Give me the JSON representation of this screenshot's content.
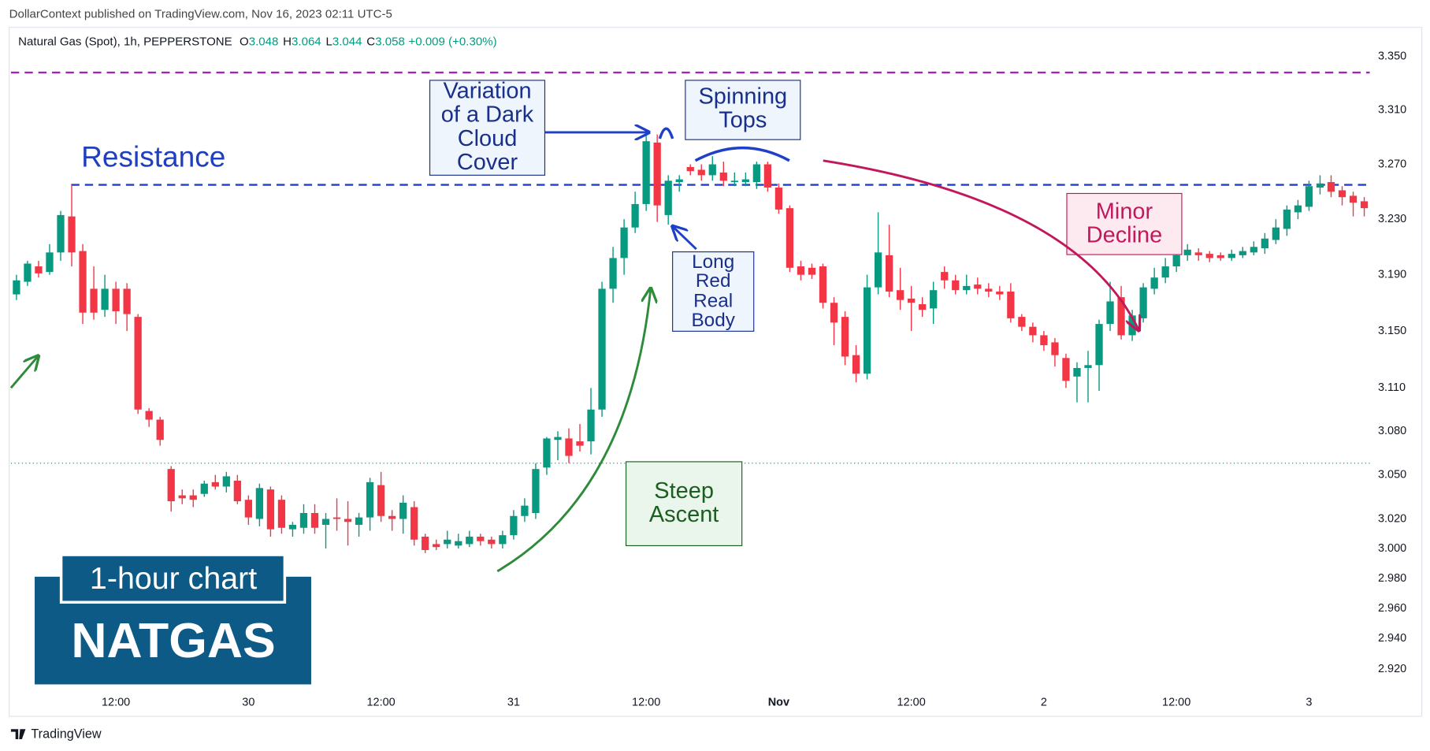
{
  "header": {
    "text": "DollarContext published on TradingView.com, Nov 16, 2023 02:11 UTC-5",
    "brand": "TradingView"
  },
  "badge": {
    "subtitle": "1-hour chart",
    "title": "NATGAS"
  },
  "chart_data": {
    "type": "candlestick",
    "title": "Natural Gas (Spot), 1h, PEPPERSTONE",
    "ohlc_legend": [
      {
        "label": "O",
        "value": 3.048
      },
      {
        "label": "H",
        "value": 3.064
      },
      {
        "label": "L",
        "value": 3.044
      },
      {
        "label": "C",
        "value": 3.058
      }
    ],
    "change": "+0.009 (+0.30%)",
    "legend_color": "#089981",
    "up_color": "#089981",
    "down_color": "#f23645",
    "log": true,
    "grid": false,
    "ylim": [
      2.907,
      3.372
    ],
    "yticks": [
      {
        "value": 3.35,
        "label": "3.350"
      },
      {
        "value": 3.31,
        "label": "3.310"
      },
      {
        "value": 3.27,
        "label": "3.270"
      },
      {
        "value": 3.23,
        "label": "3.230"
      },
      {
        "value": 3.19,
        "label": "3.190"
      },
      {
        "value": 3.15,
        "label": "3.150"
      },
      {
        "value": 3.11,
        "label": "3.110"
      },
      {
        "value": 3.08,
        "label": "3.080"
      },
      {
        "value": 3.05,
        "label": "3.050"
      },
      {
        "value": 3.02,
        "label": "3.020"
      },
      {
        "value": 3,
        "label": "3.000"
      },
      {
        "value": 2.98,
        "label": "2.980"
      },
      {
        "value": 2.96,
        "label": "2.960"
      },
      {
        "value": 2.94,
        "label": "2.940"
      },
      {
        "value": 2.92,
        "label": "2.920"
      }
    ],
    "categories": [
      null,
      null,
      null,
      null,
      null,
      null,
      null,
      null,
      null,
      "12:00",
      null,
      null,
      null,
      null,
      null,
      null,
      null,
      null,
      null,
      null,
      null,
      "30",
      null,
      null,
      null,
      null,
      null,
      null,
      null,
      null,
      null,
      null,
      null,
      "12:00",
      null,
      null,
      null,
      null,
      null,
      null,
      null,
      null,
      null,
      null,
      null,
      "31",
      null,
      null,
      null,
      null,
      null,
      null,
      null,
      null,
      null,
      null,
      null,
      "12:00",
      null,
      null,
      null,
      null,
      null,
      null,
      null,
      null,
      null,
      null,
      null,
      "Nov",
      null,
      null,
      null,
      null,
      null,
      null,
      null,
      null,
      null,
      null,
      null,
      "12:00",
      null,
      null,
      null,
      null,
      null,
      null,
      null,
      null,
      null,
      null,
      null,
      "2",
      null,
      null,
      null,
      null,
      null,
      null,
      null,
      null,
      null,
      null,
      null,
      "12:00",
      null,
      null,
      null,
      null,
      null,
      null,
      null,
      null,
      null,
      null,
      null,
      "3",
      null,
      null,
      null,
      null,
      null
    ],
    "open": [
      3.176,
      3.185,
      3.196,
      3.192,
      3.206,
      3.232,
      3.207,
      3.18,
      3.165,
      3.18,
      3.18,
      3.16,
      3.094,
      3.088,
      3.054,
      3.036,
      3.036,
      3.037,
      3.045,
      3.042,
      3.046,
      3.033,
      3.02,
      3.04,
      3.033,
      3.013,
      3.014,
      3.024,
      3.016,
      3.021,
      3.02,
      3.016,
      3.021,
      3.043,
      3.022,
      3.02,
      3.028,
      3.008,
      3.003,
      3.003,
      3.002,
      3.003,
      3.008,
      3.006,
      3.003,
      3.009,
      3.022,
      3.024,
      3.055,
      3.074,
      3.075,
      3.073,
      3.073,
      3.095,
      3.18,
      3.202,
      3.224,
      3.241,
      3.286,
      3.233,
      3.257,
      3.268,
      3.266,
      3.262,
      3.264,
      3.257,
      3.257,
      3.257,
      3.27,
      3.253,
      3.238,
      3.196,
      3.195,
      3.196,
      3.17,
      3.16,
      3.133,
      3.12,
      3.181,
      3.204,
      3.179,
      3.173,
      3.169,
      3.166,
      3.192,
      3.186,
      3.179,
      3.183,
      3.18,
      3.178,
      3.178,
      3.16,
      3.153,
      3.147,
      3.142,
      3.131,
      3.118,
      3.124,
      3.126,
      3.155,
      3.174,
      3.147,
      3.159,
      3.18,
      3.188,
      3.196,
      3.204,
      3.206,
      3.205,
      3.204,
      3.202,
      3.204,
      3.206,
      3.209,
      3.215,
      3.223,
      3.235,
      3.239,
      3.253,
      3.257,
      3.251,
      3.247,
      3.243
    ],
    "high": [
      3.19,
      3.2,
      3.2,
      3.212,
      3.236,
      3.255,
      3.212,
      3.196,
      3.19,
      3.185,
      3.184,
      3.162,
      3.096,
      3.09,
      3.056,
      3.04,
      3.04,
      3.046,
      3.05,
      3.052,
      3.05,
      3.036,
      3.044,
      3.042,
      3.036,
      3.018,
      3.03,
      3.03,
      3.024,
      3.034,
      3.032,
      3.024,
      3.048,
      3.052,
      3.026,
      3.036,
      3.032,
      3.01,
      3.006,
      3.012,
      3.01,
      3.012,
      3.01,
      3.008,
      3.012,
      3.026,
      3.034,
      3.058,
      3.076,
      3.08,
      3.082,
      3.085,
      3.11,
      3.185,
      3.21,
      3.23,
      3.25,
      3.292,
      3.292,
      3.262,
      3.262,
      3.27,
      3.27,
      3.276,
      3.272,
      3.264,
      3.264,
      3.272,
      3.272,
      3.256,
      3.24,
      3.2,
      3.198,
      3.198,
      3.174,
      3.164,
      3.14,
      3.19,
      3.235,
      3.226,
      3.195,
      3.182,
      3.174,
      3.185,
      3.196,
      3.19,
      3.19,
      3.188,
      3.184,
      3.182,
      3.184,
      3.162,
      3.156,
      3.15,
      3.145,
      3.134,
      3.128,
      3.136,
      3.158,
      3.185,
      3.182,
      3.165,
      3.184,
      3.195,
      3.202,
      3.208,
      3.212,
      3.209,
      3.207,
      3.206,
      3.208,
      3.21,
      3.214,
      3.22,
      3.23,
      3.24,
      3.244,
      3.258,
      3.262,
      3.262,
      3.254,
      3.25,
      3.246
    ],
    "low": [
      3.172,
      3.182,
      3.188,
      3.19,
      3.2,
      3.196,
      3.155,
      3.158,
      3.16,
      3.155,
      3.15,
      3.092,
      3.083,
      3.07,
      3.025,
      3.03,
      3.028,
      3.035,
      3.04,
      3.038,
      3.03,
      3.016,
      3.015,
      3.008,
      3.01,
      3.008,
      3.01,
      3.01,
      3.0,
      3.012,
      3.002,
      3.008,
      3.012,
      3.018,
      3.012,
      3.01,
      3.002,
      2.997,
      2.999,
      3.0,
      3.0,
      3.001,
      3.002,
      3.0,
      3.0,
      3.006,
      3.018,
      3.02,
      3.05,
      3.06,
      3.058,
      3.066,
      3.064,
      3.09,
      3.17,
      3.19,
      3.22,
      3.236,
      3.228,
      3.226,
      3.25,
      3.262,
      3.258,
      3.258,
      3.254,
      3.254,
      3.254,
      3.252,
      3.25,
      3.234,
      3.192,
      3.186,
      3.187,
      3.166,
      3.14,
      3.126,
      3.114,
      3.116,
      3.176,
      3.174,
      3.165,
      3.15,
      3.16,
      3.155,
      3.18,
      3.176,
      3.176,
      3.176,
      3.174,
      3.172,
      3.156,
      3.15,
      3.142,
      3.136,
      3.125,
      3.11,
      3.1,
      3.1,
      3.108,
      3.15,
      3.144,
      3.143,
      3.156,
      3.176,
      3.184,
      3.192,
      3.2,
      3.2,
      3.199,
      3.2,
      3.2,
      3.202,
      3.204,
      3.205,
      3.212,
      3.218,
      3.23,
      3.236,
      3.248,
      3.246,
      3.24,
      3.232,
      3.232
    ],
    "close": [
      3.186,
      3.198,
      3.191,
      3.206,
      3.233,
      3.206,
      3.163,
      3.163,
      3.18,
      3.164,
      3.162,
      3.095,
      3.088,
      3.074,
      3.032,
      3.034,
      3.033,
      3.044,
      3.042,
      3.049,
      3.032,
      3.021,
      3.041,
      3.013,
      3.014,
      3.016,
      3.024,
      3.014,
      3.02,
      3.02,
      3.018,
      3.021,
      3.045,
      3.022,
      3.02,
      3.031,
      3.006,
      2.999,
      3.001,
      3.006,
      3.005,
      3.008,
      3.005,
      3.003,
      3.009,
      3.022,
      3.029,
      3.054,
      3.075,
      3.076,
      3.063,
      3.07,
      3.095,
      3.18,
      3.202,
      3.224,
      3.241,
      3.287,
      3.24,
      3.258,
      3.259,
      3.265,
      3.262,
      3.27,
      3.258,
      3.258,
      3.259,
      3.27,
      3.253,
      3.237,
      3.195,
      3.19,
      3.19,
      3.17,
      3.156,
      3.132,
      3.12,
      3.181,
      3.206,
      3.178,
      3.172,
      3.17,
      3.165,
      3.179,
      3.186,
      3.179,
      3.182,
      3.18,
      3.178,
      3.176,
      3.159,
      3.153,
      3.147,
      3.14,
      3.133,
      3.115,
      3.124,
      3.126,
      3.155,
      3.171,
      3.147,
      3.161,
      3.181,
      3.188,
      3.196,
      3.204,
      3.208,
      3.204,
      3.202,
      3.202,
      3.205,
      3.207,
      3.21,
      3.216,
      3.224,
      3.237,
      3.24,
      3.254,
      3.256,
      3.25,
      3.246,
      3.242,
      3.238
    ],
    "hlines": [
      {
        "value": 3.338,
        "color": "#9c27b0",
        "style": "dashed"
      },
      {
        "value": 3.255,
        "color": "#1e40c8",
        "style": "dashed"
      },
      {
        "value": 3.058,
        "color": "#089981",
        "style": "dotted"
      }
    ],
    "annotations": [
      {
        "lines": [
          "Resistance"
        ],
        "color": "#1f3fbf"
      },
      {
        "lines": [
          "Variation",
          "of a Dark",
          "Cloud",
          "Cover"
        ],
        "color": "#1a2f8a",
        "fill": "#eef5fd"
      },
      {
        "lines": [
          "Spinning",
          "Tops"
        ],
        "color": "#1a2f8a",
        "fill": "#eef5fd"
      },
      {
        "lines": [
          "Long",
          "Red",
          "Real",
          "Body"
        ],
        "color": "#1a2f8a",
        "fill": "#eef5fd"
      },
      {
        "lines": [
          "Steep",
          "Ascent"
        ],
        "color": "#1b5e20",
        "fill": "#eaf6ec"
      },
      {
        "lines": [
          "Minor",
          "Decline"
        ],
        "color": "#c2185b",
        "fill": "#fdeaf1"
      }
    ]
  }
}
